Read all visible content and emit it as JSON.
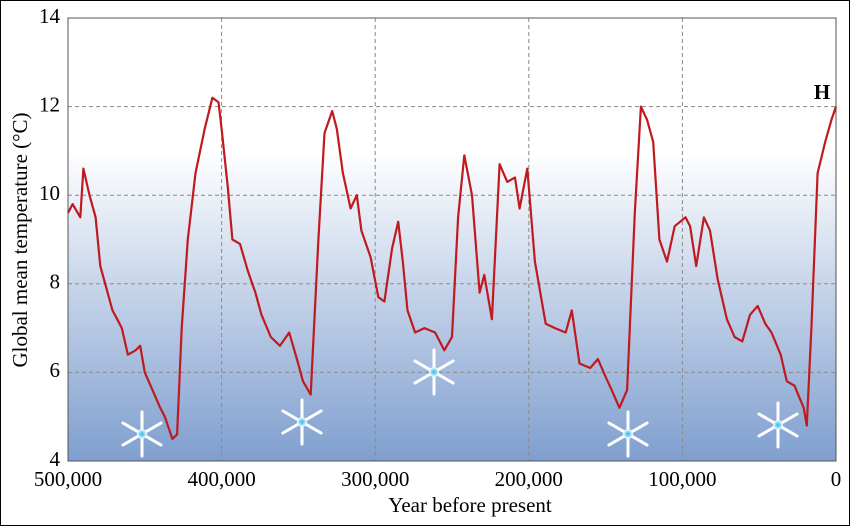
{
  "chart_data": {
    "type": "line",
    "xlabel": "Year before present",
    "ylabel": "Global mean temperature (°C)",
    "annotation": "H",
    "xlim": [
      500000,
      0
    ],
    "xticks": [
      {
        "value": 500000,
        "label": "500,000"
      },
      {
        "value": 400000,
        "label": "400,000"
      },
      {
        "value": 300000,
        "label": "300,000"
      },
      {
        "value": 200000,
        "label": "200,000"
      },
      {
        "value": 100000,
        "label": "100,000"
      },
      0
    ],
    "ylim": [
      4,
      14
    ],
    "yticks": [
      4,
      6,
      8,
      10,
      12,
      14
    ],
    "grid": true,
    "series": [
      {
        "color": "#c0191e",
        "x": [
          500000,
          497000,
          492000,
          490000,
          486000,
          482000,
          479000,
          475000,
          471000,
          468000,
          465000,
          461000,
          456000,
          453000,
          450000,
          445000,
          440000,
          437000,
          432000,
          429000,
          426000,
          422000,
          417000,
          411000,
          406000,
          402000,
          400000,
          396000,
          393000,
          388000,
          383000,
          378000,
          374000,
          368000,
          362000,
          356000,
          351000,
          347000,
          342000,
          337000,
          333000,
          328000,
          325000,
          321000,
          316000,
          312000,
          309000,
          303000,
          298000,
          294000,
          289000,
          285000,
          282000,
          279000,
          274000,
          268000,
          261000,
          255000,
          250000,
          246000,
          242000,
          237000,
          232000,
          229000,
          224000,
          219000,
          214000,
          209000,
          206000,
          201000,
          196000,
          189000,
          183000,
          176000,
          172000,
          167000,
          160000,
          155000,
          150000,
          146000,
          141000,
          136000,
          131000,
          127000,
          123000,
          119000,
          115000,
          110000,
          105000,
          98000,
          95000,
          91000,
          86000,
          82000,
          77000,
          71000,
          66000,
          61000,
          56000,
          51000,
          46000,
          42000,
          36000,
          32000,
          27000,
          21000,
          19000,
          16000,
          12000,
          7000,
          3000,
          0
        ],
        "values": [
          9.6,
          9.8,
          9.5,
          10.6,
          10.0,
          9.5,
          8.4,
          7.9,
          7.4,
          7.2,
          7.0,
          6.4,
          6.5,
          6.6,
          6.0,
          5.6,
          5.2,
          5.0,
          4.5,
          4.6,
          7.0,
          9.0,
          10.5,
          11.5,
          12.2,
          12.1,
          11.5,
          10.2,
          9.0,
          8.9,
          8.3,
          7.8,
          7.3,
          6.8,
          6.6,
          6.9,
          6.3,
          5.8,
          5.5,
          9.0,
          11.4,
          11.9,
          11.5,
          10.5,
          9.7,
          10.0,
          9.2,
          8.6,
          7.7,
          7.6,
          8.8,
          9.4,
          8.5,
          7.4,
          6.9,
          7.0,
          6.9,
          6.5,
          6.8,
          9.5,
          10.9,
          10.0,
          7.8,
          8.2,
          7.2,
          10.7,
          10.3,
          10.4,
          9.7,
          10.6,
          8.5,
          7.1,
          7.0,
          6.9,
          7.4,
          6.2,
          6.1,
          6.3,
          5.9,
          5.6,
          5.2,
          5.6,
          9.6,
          12.0,
          11.7,
          11.2,
          9.0,
          8.5,
          9.3,
          9.5,
          9.3,
          8.4,
          9.5,
          9.2,
          8.1,
          7.2,
          6.8,
          6.7,
          7.3,
          7.5,
          7.1,
          6.9,
          6.4,
          5.8,
          5.7,
          5.2,
          4.8,
          7.0,
          10.5,
          11.2,
          11.7,
          12.0
        ]
      }
    ]
  }
}
